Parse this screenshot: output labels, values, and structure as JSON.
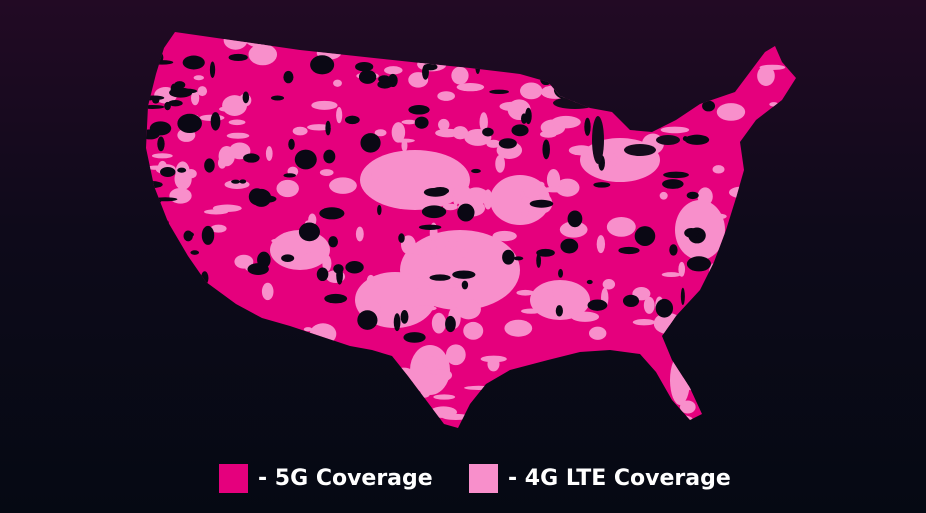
{
  "legend": {
    "items": [
      {
        "label": "- 5G Coverage",
        "color": "#e5007d"
      },
      {
        "label": "- 4G LTE Coverage",
        "color": "#f88fcb"
      }
    ]
  }
}
